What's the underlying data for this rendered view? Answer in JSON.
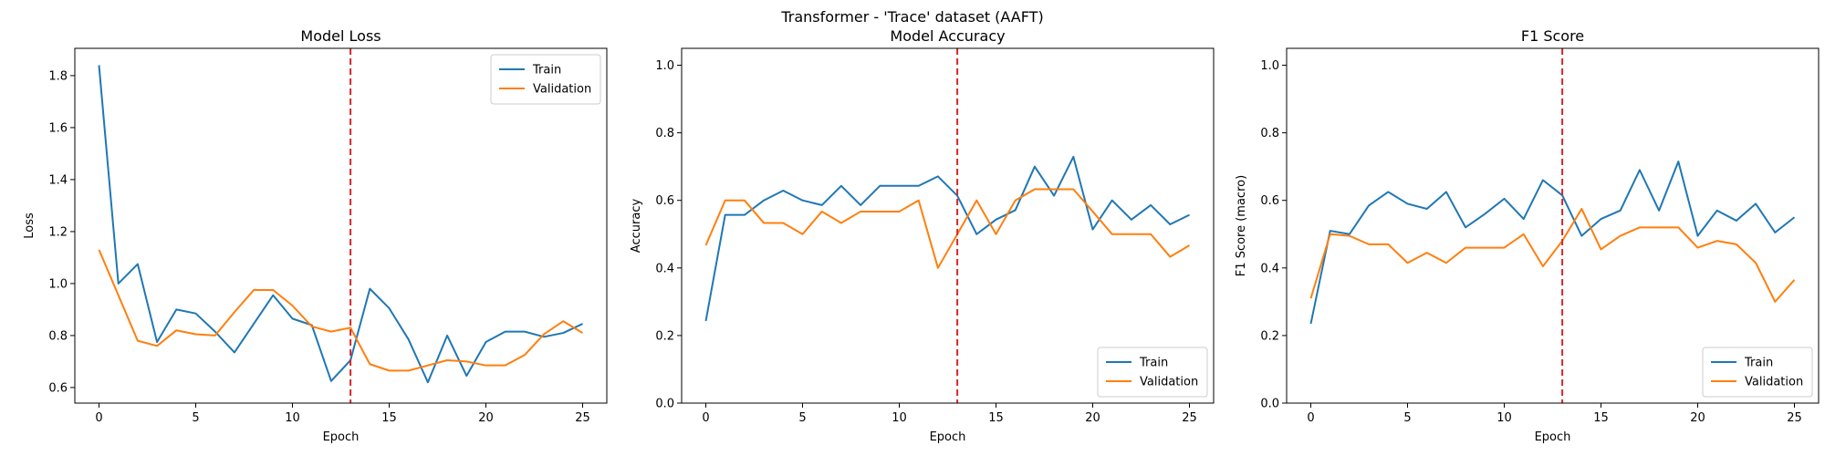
{
  "figure": {
    "suptitle": "Transformer - 'Trace' dataset (AAFT)"
  },
  "colors": {
    "train": "#1f77b4",
    "validation": "#ff7f0e",
    "marker_line": "#d62728"
  },
  "chart_data": [
    {
      "type": "line",
      "title": "Model Loss",
      "xlabel": "Epoch",
      "ylabel": "Loss",
      "xlim": [
        -1.25,
        26.25
      ],
      "ylim": [
        0.54,
        1.905
      ],
      "xticks": [
        0,
        5,
        10,
        15,
        20,
        25
      ],
      "xtick_labels": [
        "0",
        "5",
        "10",
        "15",
        "20",
        "25"
      ],
      "yticks": [
        0.6,
        0.8,
        1.0,
        1.2,
        1.4,
        1.6,
        1.8
      ],
      "ytick_labels": [
        "0.6",
        "0.8",
        "1.0",
        "1.2",
        "1.4",
        "1.6",
        "1.8"
      ],
      "vline_x": 13,
      "legend_position": "top-right",
      "x": [
        0,
        1,
        2,
        3,
        4,
        5,
        6,
        7,
        8,
        9,
        10,
        11,
        12,
        13,
        14,
        15,
        16,
        17,
        18,
        19,
        20,
        21,
        22,
        23,
        24,
        25
      ],
      "series": [
        {
          "name": "Train",
          "values": [
            1.84,
            1.0,
            1.075,
            0.775,
            0.9,
            0.885,
            0.815,
            0.735,
            0.845,
            0.955,
            0.865,
            0.84,
            0.625,
            0.705,
            0.98,
            0.905,
            0.785,
            0.62,
            0.8,
            0.645,
            0.775,
            0.815,
            0.815,
            0.795,
            0.81,
            0.845
          ]
        },
        {
          "name": "Validation",
          "values": [
            1.13,
            0.955,
            0.78,
            0.76,
            0.82,
            0.805,
            0.8,
            0.89,
            0.975,
            0.975,
            0.915,
            0.835,
            0.815,
            0.83,
            0.69,
            0.665,
            0.665,
            0.685,
            0.705,
            0.7,
            0.685,
            0.685,
            0.725,
            0.805,
            0.855,
            0.81
          ]
        }
      ]
    },
    {
      "type": "line",
      "title": "Model Accuracy",
      "xlabel": "Epoch",
      "ylabel": "Accuracy",
      "xlim": [
        -1.25,
        26.25
      ],
      "ylim": [
        0,
        1.05
      ],
      "xticks": [
        0,
        5,
        10,
        15,
        20,
        25
      ],
      "xtick_labels": [
        "0",
        "5",
        "10",
        "15",
        "20",
        "25"
      ],
      "yticks": [
        0.0,
        0.2,
        0.4,
        0.6,
        0.8,
        1.0
      ],
      "ytick_labels": [
        "0.0",
        "0.2",
        "0.4",
        "0.6",
        "0.8",
        "1.0"
      ],
      "vline_x": 13,
      "legend_position": "bottom-right",
      "x": [
        0,
        1,
        2,
        3,
        4,
        5,
        6,
        7,
        8,
        9,
        10,
        11,
        12,
        13,
        14,
        15,
        16,
        17,
        18,
        19,
        20,
        21,
        22,
        23,
        24,
        25
      ],
      "series": [
        {
          "name": "Train",
          "values": [
            0.243,
            0.557,
            0.557,
            0.6,
            0.629,
            0.6,
            0.586,
            0.643,
            0.586,
            0.643,
            0.643,
            0.643,
            0.671,
            0.614,
            0.5,
            0.543,
            0.571,
            0.7,
            0.614,
            0.729,
            0.514,
            0.6,
            0.543,
            0.586,
            0.529,
            0.557
          ]
        },
        {
          "name": "Validation",
          "values": [
            0.467,
            0.6,
            0.6,
            0.533,
            0.533,
            0.5,
            0.567,
            0.533,
            0.567,
            0.567,
            0.567,
            0.6,
            0.4,
            0.5,
            0.6,
            0.5,
            0.6,
            0.633,
            0.633,
            0.633,
            0.567,
            0.5,
            0.5,
            0.5,
            0.433,
            0.467
          ]
        }
      ]
    },
    {
      "type": "line",
      "title": "F1 Score",
      "xlabel": "Epoch",
      "ylabel": "F1 Score (macro)",
      "xlim": [
        -1.25,
        26.25
      ],
      "ylim": [
        0,
        1.05
      ],
      "xticks": [
        0,
        5,
        10,
        15,
        20,
        25
      ],
      "xtick_labels": [
        "0",
        "5",
        "10",
        "15",
        "20",
        "25"
      ],
      "yticks": [
        0.0,
        0.2,
        0.4,
        0.6,
        0.8,
        1.0
      ],
      "ytick_labels": [
        "0.0",
        "0.2",
        "0.4",
        "0.6",
        "0.8",
        "1.0"
      ],
      "vline_x": 13,
      "legend_position": "bottom-right",
      "x": [
        0,
        1,
        2,
        3,
        4,
        5,
        6,
        7,
        8,
        9,
        10,
        11,
        12,
        13,
        14,
        15,
        16,
        17,
        18,
        19,
        20,
        21,
        22,
        23,
        24,
        25
      ],
      "series": [
        {
          "name": "Train",
          "values": [
            0.235,
            0.51,
            0.5,
            0.585,
            0.625,
            0.59,
            0.575,
            0.625,
            0.52,
            0.56,
            0.605,
            0.545,
            0.66,
            0.615,
            0.495,
            0.545,
            0.57,
            0.69,
            0.57,
            0.715,
            0.495,
            0.57,
            0.54,
            0.59,
            0.505,
            0.55
          ]
        },
        {
          "name": "Validation",
          "values": [
            0.31,
            0.5,
            0.495,
            0.47,
            0.47,
            0.415,
            0.445,
            0.415,
            0.46,
            0.46,
            0.46,
            0.5,
            0.405,
            0.48,
            0.575,
            0.455,
            0.495,
            0.52,
            0.52,
            0.52,
            0.46,
            0.48,
            0.47,
            0.415,
            0.3,
            0.365
          ]
        }
      ]
    }
  ]
}
